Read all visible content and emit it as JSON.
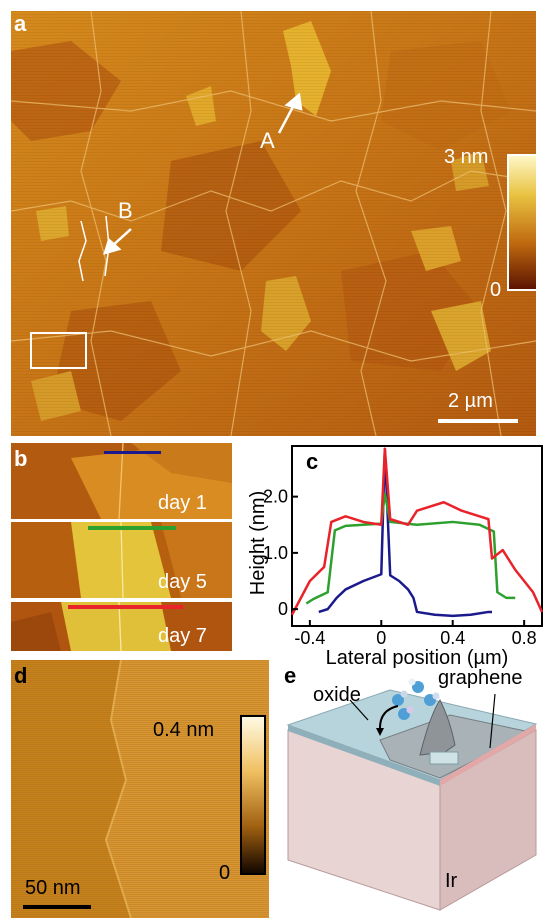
{
  "panel_a": {
    "letter": "a",
    "label_A": "A",
    "label_B": "B",
    "colorbar_max": "3 nm",
    "colorbar_min": "0",
    "scalebar": "2 µm"
  },
  "panel_b": {
    "letter": "b",
    "days": [
      "day 1",
      "day 5",
      "day 7"
    ],
    "line_colors": [
      "#1a1a8c",
      "#2ea02e",
      "#e8232a"
    ]
  },
  "panel_c": {
    "letter": "c"
  },
  "panel_d": {
    "letter": "d",
    "colorbar_max": "0.4 nm",
    "colorbar_min": "0",
    "scalebar": "50 nm"
  },
  "panel_e": {
    "letter": "e",
    "label_oxide": "oxide",
    "label_graphene": "graphene",
    "label_ir": "Ir"
  },
  "chart_data": {
    "type": "line",
    "xlabel": "Lateral position (µm)",
    "ylabel": "Height (nm)",
    "xlim": [
      -0.5,
      0.9
    ],
    "ylim": [
      -0.3,
      2.9
    ],
    "xticks": [
      "-0.4",
      "0",
      "0.4",
      "0.8"
    ],
    "yticks": [
      "0",
      "1.0",
      "2.0"
    ],
    "series": [
      {
        "color": "#1a1a8c",
        "x": [
          -0.35,
          -0.3,
          -0.25,
          -0.2,
          -0.1,
          0.0,
          0.02,
          0.05,
          0.1,
          0.15,
          0.18,
          0.2,
          0.3,
          0.4,
          0.5,
          0.6,
          0.62
        ],
        "y": [
          -0.05,
          0.0,
          0.2,
          0.35,
          0.5,
          0.62,
          2.85,
          0.6,
          0.5,
          0.35,
          0.2,
          -0.05,
          -0.1,
          -0.12,
          -0.1,
          -0.05,
          -0.05
        ]
      },
      {
        "color": "#2ea02e",
        "x": [
          -0.42,
          -0.38,
          -0.3,
          -0.26,
          -0.2,
          -0.1,
          0.0,
          0.02,
          0.05,
          0.2,
          0.4,
          0.55,
          0.63,
          0.65,
          0.7,
          0.75
        ],
        "y": [
          0.1,
          0.18,
          0.3,
          1.4,
          1.48,
          1.5,
          1.52,
          2.05,
          1.55,
          1.5,
          1.55,
          1.5,
          1.38,
          0.3,
          0.2,
          0.2
        ]
      },
      {
        "color": "#e8232a",
        "x": [
          -0.5,
          -0.45,
          -0.4,
          -0.32,
          -0.28,
          -0.2,
          -0.1,
          0.0,
          0.02,
          0.05,
          0.15,
          0.2,
          0.35,
          0.45,
          0.55,
          0.6,
          0.62,
          0.68,
          0.75,
          0.85,
          0.9
        ],
        "y": [
          -0.1,
          0.2,
          0.5,
          0.75,
          1.55,
          1.65,
          1.55,
          1.5,
          2.85,
          1.6,
          1.5,
          1.75,
          1.9,
          1.75,
          1.65,
          1.6,
          0.9,
          1.05,
          0.7,
          0.3,
          -0.05
        ]
      }
    ]
  }
}
